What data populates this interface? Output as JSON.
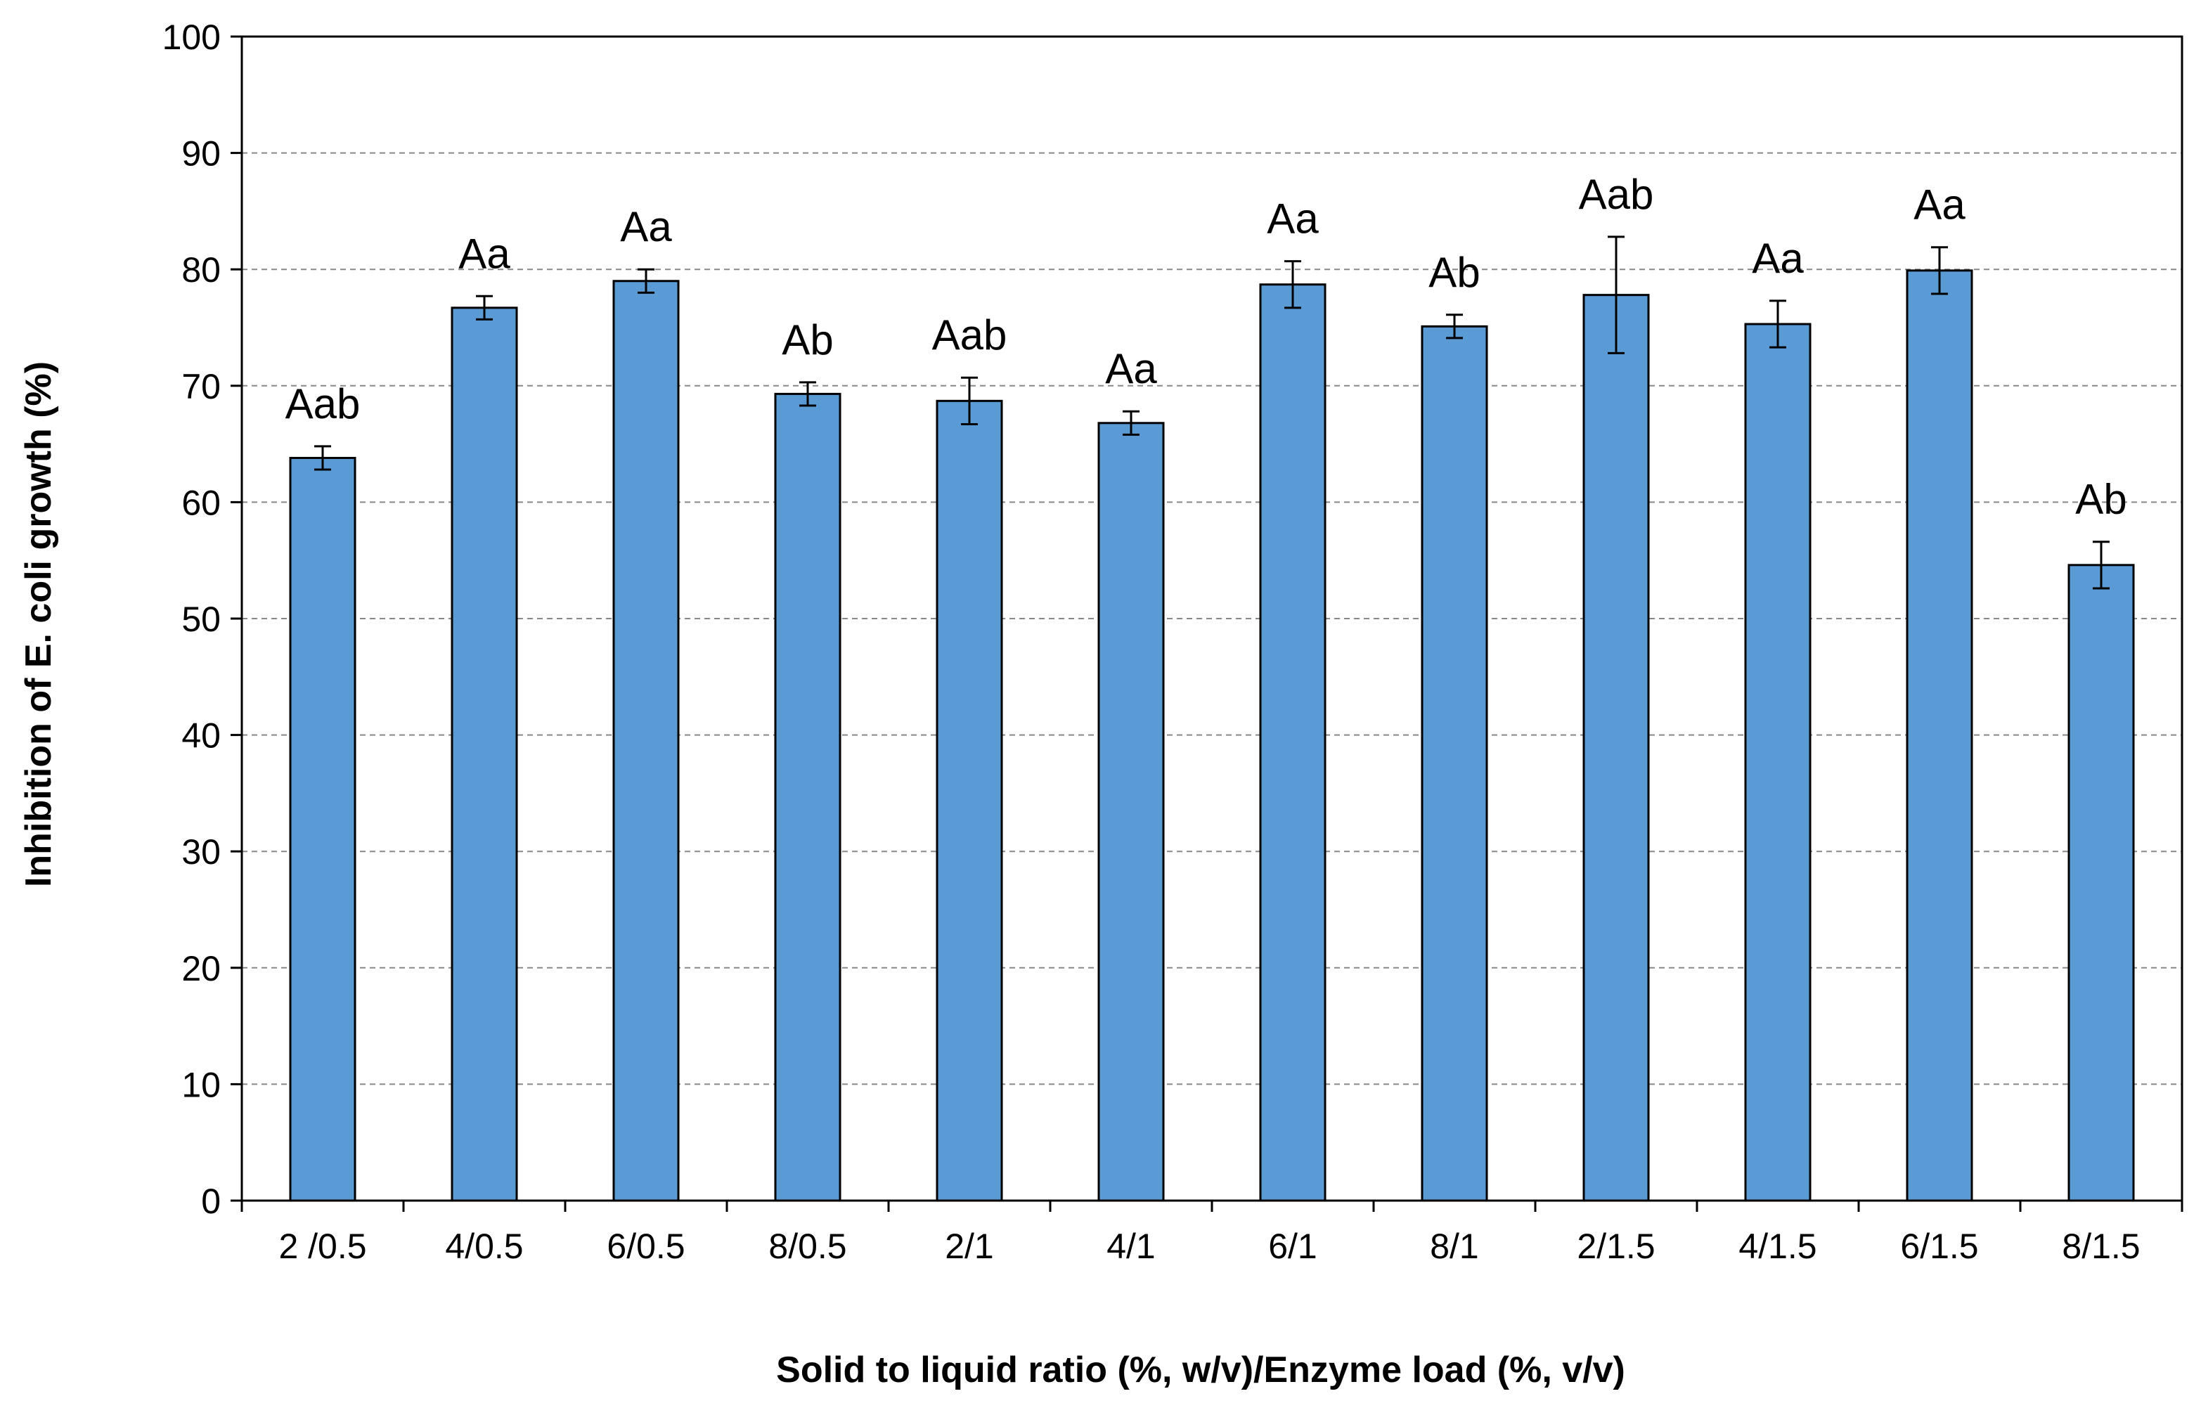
{
  "chart_data": {
    "type": "bar",
    "title": "",
    "xlabel": "Solid to liquid ratio (%, w/v)/Enzyme load (%, v/v)",
    "ylabel": "Inhibition of E. coli growth (%)",
    "ylim": [
      0,
      100
    ],
    "yticks": [
      "0",
      "10",
      "20",
      "30",
      "40",
      "50",
      "60",
      "70",
      "80",
      "90",
      "100"
    ],
    "grid": true,
    "categories": [
      "2 /0.5",
      "4/0.5",
      "6/0.5",
      "8/0.5",
      "2/1",
      "4/1",
      "6/1",
      "8/1",
      "2/1.5",
      "4/1.5",
      "6/1.5",
      "8/1.5"
    ],
    "values": [
      63.8,
      76.7,
      79.0,
      69.3,
      68.7,
      66.8,
      78.7,
      75.1,
      77.8,
      75.3,
      79.9,
      54.6
    ],
    "errors": [
      1.0,
      1.0,
      1.0,
      1.0,
      2.0,
      1.0,
      2.0,
      1.0,
      5.0,
      2.0,
      2.0,
      2.0
    ],
    "significance_labels": [
      "Aab",
      "Aa",
      "Aa",
      "Ab",
      "Aab",
      "Aa",
      "Aa",
      "Ab",
      "Aab",
      "Aa",
      "Aa",
      "Ab"
    ],
    "colors": {
      "bar": "#5b9bd5",
      "bar_outline": "#000000",
      "grid": "#888888"
    }
  }
}
